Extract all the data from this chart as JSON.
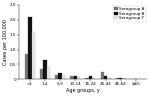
{
  "age_groups": [
    "<1",
    "1-4",
    "5-9",
    "10-14",
    "15-24",
    "25-44",
    "45-64",
    "≥65"
  ],
  "serogroup_A": [
    0.85,
    0.35,
    0.15,
    0.1,
    0.05,
    0.25,
    0.05,
    0.02
  ],
  "serogroup_B": [
    2.1,
    0.65,
    0.2,
    0.12,
    0.1,
    0.1,
    0.05,
    0.02
  ],
  "serogroup_Y": [
    1.6,
    0.4,
    0.15,
    0.08,
    0.04,
    0.05,
    0.03,
    0.01
  ],
  "color_A": "#777777",
  "color_B": "#111111",
  "color_Y": "#e8e8e8",
  "ylabel": "Cases per 100,000",
  "xlabel": "Age groups, y",
  "ylim": [
    0,
    2.5
  ],
  "yticks": [
    0,
    0.5,
    1.0,
    1.5,
    2.0,
    2.5
  ],
  "ytick_labels": [
    "0",
    "0.5",
    "1.0",
    "1.5",
    "2.0",
    "2.5"
  ],
  "legend_labels": [
    "Serogroup A",
    "Serogroup B",
    "Serogroup Y"
  ],
  "axis_fontsize": 3.5,
  "tick_fontsize": 3.0,
  "legend_fontsize": 3.0,
  "bar_width": 0.22,
  "bar_linewidth": 0.2
}
